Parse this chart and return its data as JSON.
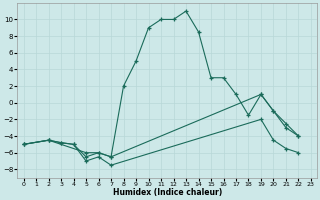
{
  "xlabel": "Humidex (Indice chaleur)",
  "background_color": "#cde8e8",
  "grid_color": "#b8d8d8",
  "line_color": "#1a6b5a",
  "ylim": [
    -9,
    12
  ],
  "xlim": [
    -0.5,
    23.5
  ],
  "yticks": [
    -8,
    -6,
    -4,
    -2,
    0,
    2,
    4,
    6,
    8,
    10
  ],
  "xticks": [
    0,
    1,
    2,
    3,
    4,
    5,
    6,
    7,
    8,
    9,
    10,
    11,
    12,
    13,
    14,
    15,
    16,
    17,
    18,
    19,
    20,
    21,
    22,
    23
  ],
  "line1_x": [
    0,
    2,
    5,
    6,
    7,
    8,
    9,
    10,
    11,
    12,
    13,
    14,
    15,
    16,
    17,
    18,
    19,
    20,
    21,
    22
  ],
  "line1_y": [
    -5.0,
    -4.5,
    -6.0,
    -6.0,
    -6.5,
    2.0,
    5.0,
    9.0,
    10.0,
    10.0,
    11.0,
    8.5,
    3.0,
    3.0,
    1.0,
    -1.5,
    1.0,
    -1.0,
    -3.0,
    -4.0
  ],
  "line2_x": [
    0,
    2,
    3,
    4,
    5,
    6,
    7,
    19,
    20,
    21,
    22
  ],
  "line2_y": [
    -5.0,
    -4.5,
    -4.8,
    -5.0,
    -6.5,
    -6.0,
    -6.5,
    1.0,
    -1.0,
    -2.5,
    -4.0
  ],
  "line3_x": [
    0,
    2,
    3,
    4,
    5,
    6,
    7,
    19,
    20,
    21,
    22
  ],
  "line3_y": [
    -5.0,
    -4.5,
    -4.8,
    -5.0,
    -7.0,
    -6.5,
    -7.5,
    -2.0,
    -4.5,
    -5.5,
    -6.0
  ]
}
